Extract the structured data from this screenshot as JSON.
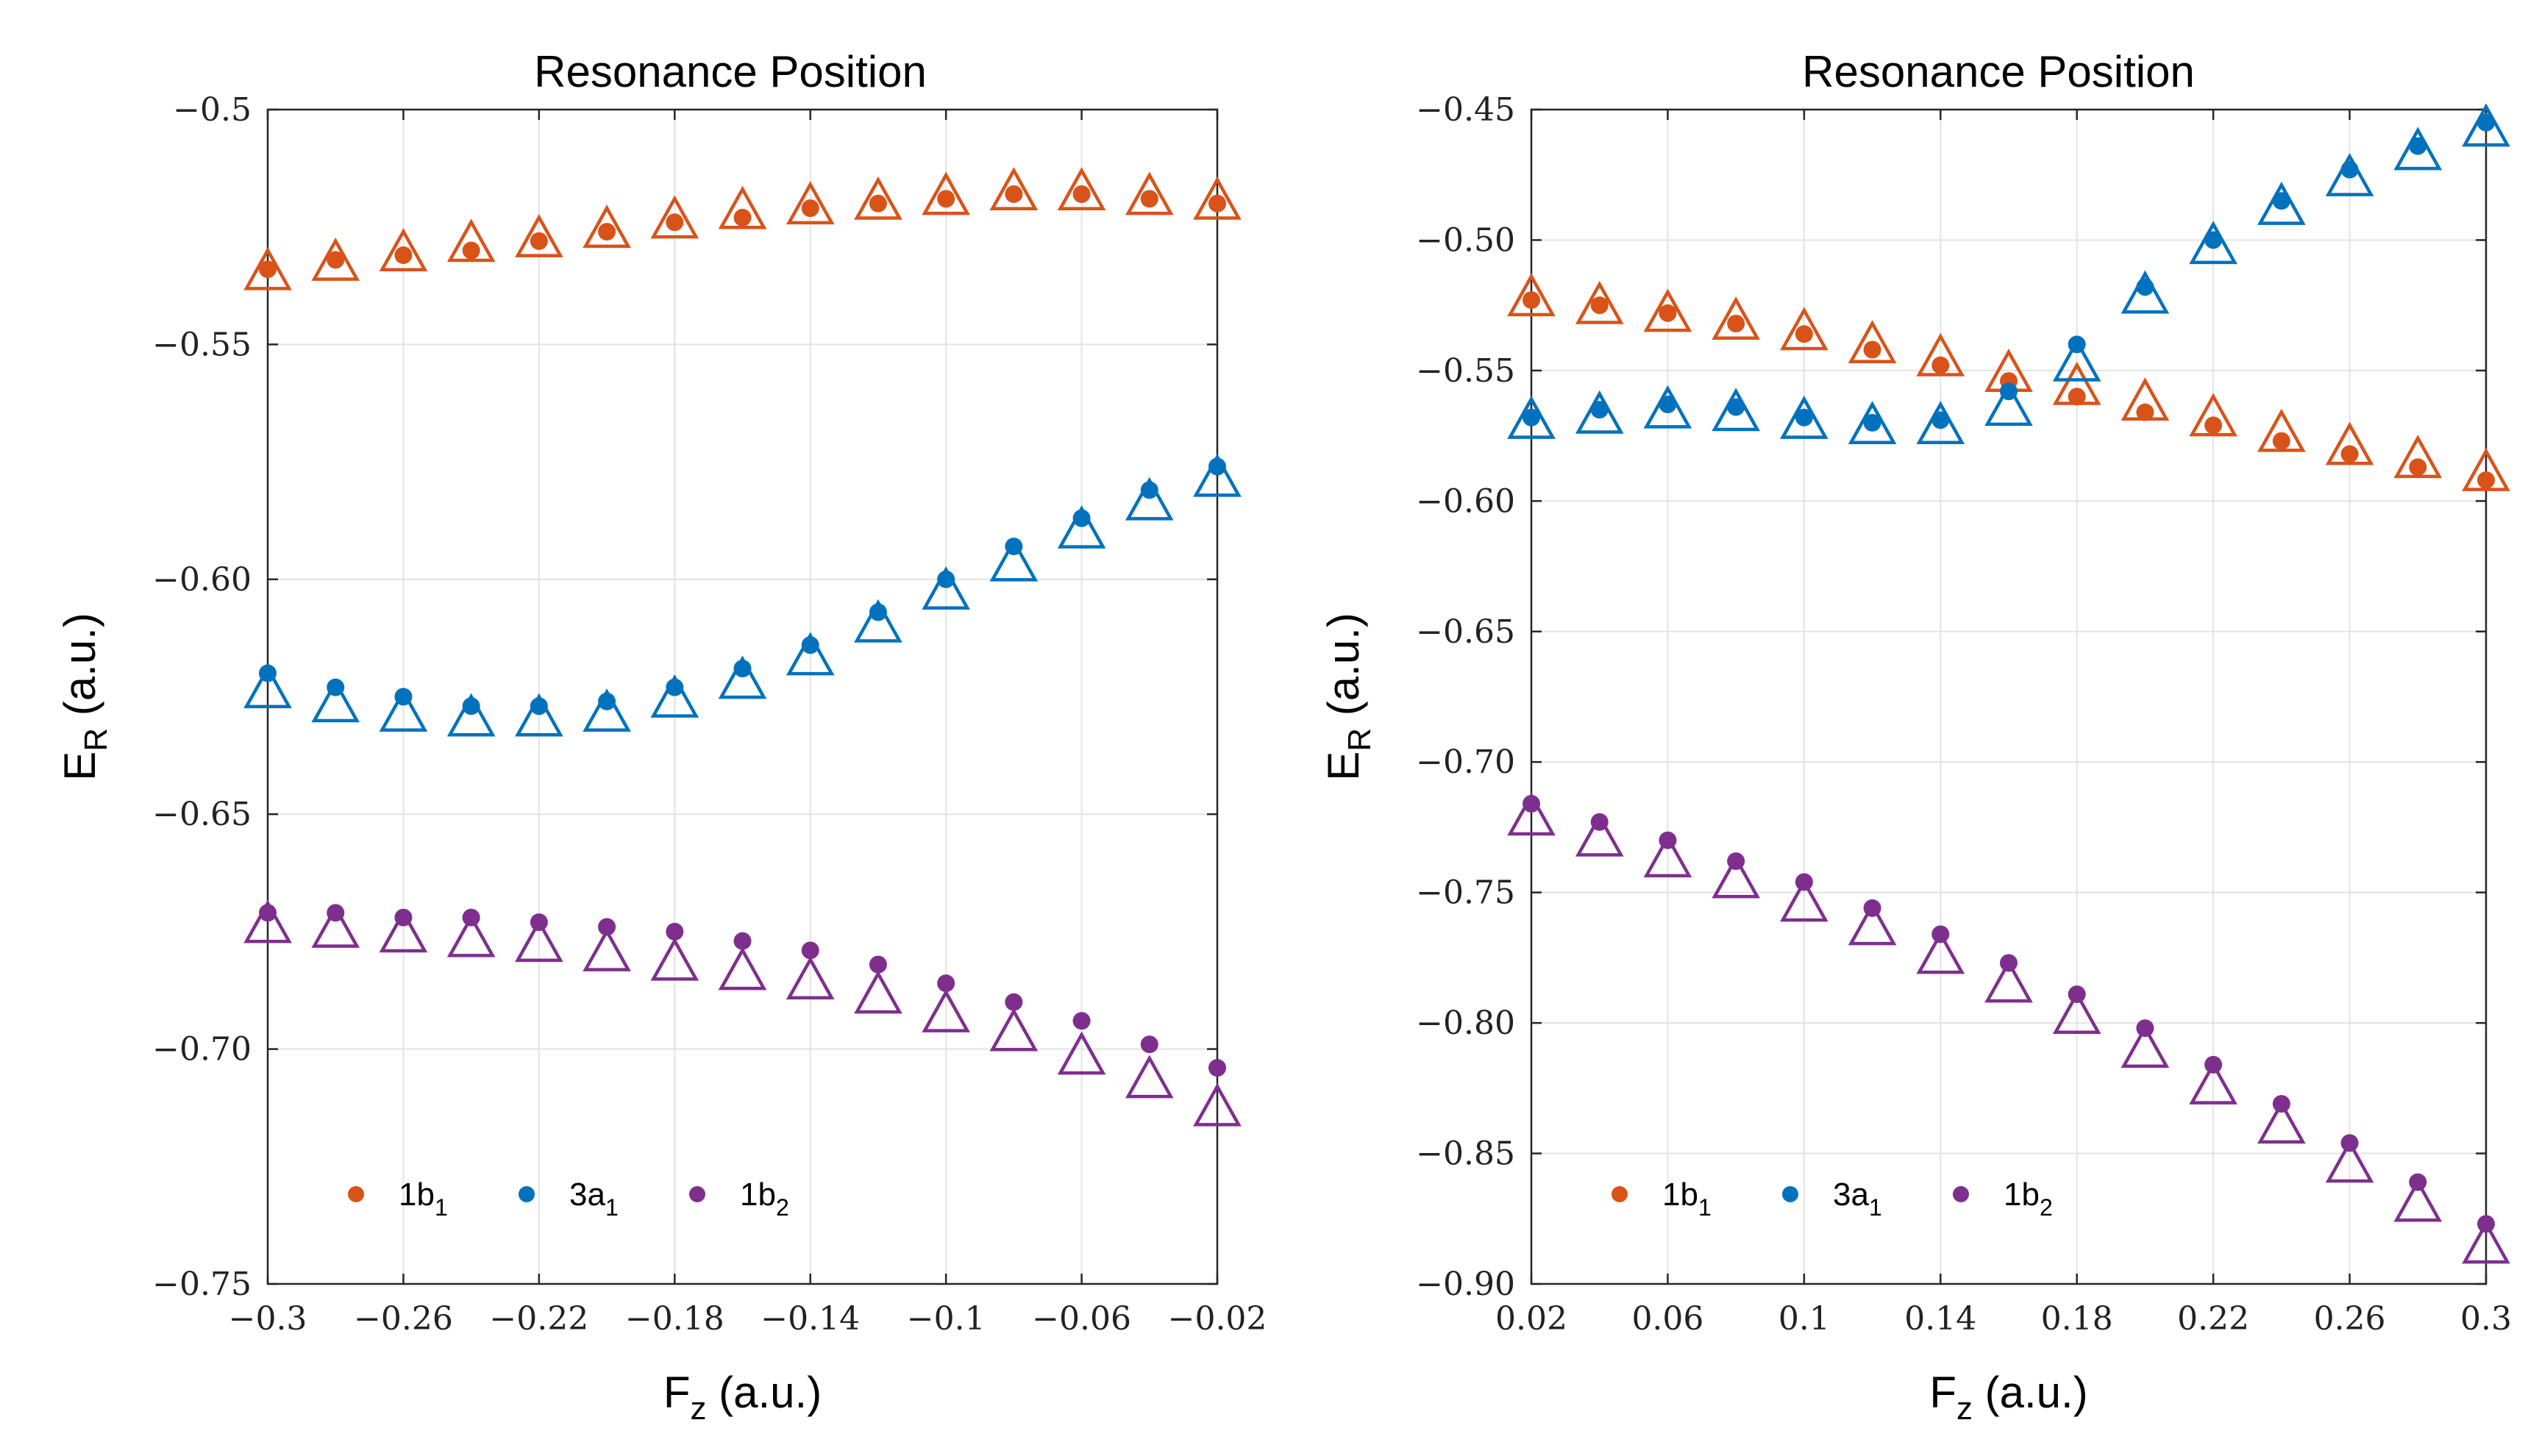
{
  "colors": {
    "1b1": "#D95319",
    "3a1": "#0072BD",
    "1b2": "#7E2F8E",
    "grid": "#e3e3e3",
    "axis": "#262626"
  },
  "chart_data": [
    {
      "type": "scatter",
      "title": "Resonance Position",
      "xlabel": {
        "main": "F",
        "sub": "z",
        "rest": " (a.u.)"
      },
      "ylabel": {
        "main": "E",
        "sub": "R",
        "rest": " (a.u.)"
      },
      "xlim": [
        -0.3,
        -0.02
      ],
      "ylim": [
        -0.75,
        -0.5
      ],
      "xticks": [
        -0.3,
        -0.26,
        -0.22,
        -0.18,
        -0.14,
        -0.1,
        -0.06,
        -0.02
      ],
      "xtick_labels": [
        "−0.3",
        "−0.26",
        "−0.22",
        "−0.18",
        "−0.14",
        "−0.1",
        "−0.06",
        "−0.02"
      ],
      "yticks": [
        -0.75,
        -0.7,
        -0.65,
        -0.6,
        -0.55,
        -0.5
      ],
      "ytick_labels": [
        "−0.75",
        "−0.70",
        "−0.65",
        "−0.60",
        "−0.55",
        "−0.5"
      ],
      "grid": true,
      "legend_position": "bottom-left",
      "x": [
        -0.3,
        -0.28,
        -0.26,
        -0.24,
        -0.22,
        -0.2,
        -0.18,
        -0.16,
        -0.14,
        -0.12,
        -0.1,
        -0.08,
        -0.06,
        -0.04,
        -0.02
      ],
      "series": [
        {
          "name": "1b",
          "sub": "1",
          "color_key": "1b1",
          "dots": [
            -0.534,
            -0.532,
            -0.531,
            -0.53,
            -0.528,
            -0.526,
            -0.524,
            -0.523,
            -0.521,
            -0.52,
            -0.519,
            -0.518,
            -0.518,
            -0.519,
            -0.52
          ],
          "triangles": [
            -0.535,
            -0.533,
            -0.531,
            -0.529,
            -0.528,
            -0.526,
            -0.524,
            -0.522,
            -0.521,
            -0.52,
            -0.519,
            -0.518,
            -0.518,
            -0.519,
            -0.52
          ]
        },
        {
          "name": "3a",
          "sub": "1",
          "color_key": "3a1",
          "dots": [
            -0.62,
            -0.623,
            -0.625,
            -0.627,
            -0.627,
            -0.626,
            -0.623,
            -0.619,
            -0.614,
            -0.607,
            -0.6,
            -0.593,
            -0.587,
            -0.581,
            -0.576
          ],
          "triangles": [
            -0.624,
            -0.627,
            -0.629,
            -0.63,
            -0.63,
            -0.629,
            -0.626,
            -0.622,
            -0.617,
            -0.61,
            -0.603,
            -0.597,
            -0.59,
            -0.584,
            -0.579
          ]
        },
        {
          "name": "1b",
          "sub": "2",
          "color_key": "1b2",
          "dots": [
            -0.671,
            -0.671,
            -0.672,
            -0.672,
            -0.673,
            -0.674,
            -0.675,
            -0.677,
            -0.679,
            -0.682,
            -0.686,
            -0.69,
            -0.694,
            -0.699,
            -0.704
          ],
          "triangles": [
            -0.674,
            -0.675,
            -0.676,
            -0.677,
            -0.678,
            -0.68,
            -0.682,
            -0.684,
            -0.686,
            -0.689,
            -0.693,
            -0.697,
            -0.702,
            -0.707,
            -0.713
          ]
        }
      ]
    },
    {
      "type": "scatter",
      "title": "Resonance Position",
      "xlabel": {
        "main": "F",
        "sub": "z",
        "rest": " (a.u.)"
      },
      "ylabel": {
        "main": "E",
        "sub": "R",
        "rest": " (a.u.)"
      },
      "xlim": [
        0.02,
        0.3
      ],
      "ylim": [
        -0.9,
        -0.45
      ],
      "xticks": [
        0.02,
        0.06,
        0.1,
        0.14,
        0.18,
        0.22,
        0.26,
        0.3
      ],
      "xtick_labels": [
        "0.02",
        "0.06",
        "0.1",
        "0.14",
        "0.18",
        "0.22",
        "0.26",
        "0.3"
      ],
      "yticks": [
        -0.9,
        -0.85,
        -0.8,
        -0.75,
        -0.7,
        -0.65,
        -0.6,
        -0.55,
        -0.5,
        -0.45
      ],
      "ytick_labels": [
        "−0.90",
        "−0.85",
        "−0.80",
        "−0.75",
        "−0.70",
        "−0.65",
        "−0.60",
        "−0.55",
        "−0.50",
        "−0.45"
      ],
      "grid": true,
      "legend_position": "bottom-left",
      "x": [
        0.02,
        0.04,
        0.06,
        0.08,
        0.1,
        0.12,
        0.14,
        0.16,
        0.18,
        0.2,
        0.22,
        0.24,
        0.26,
        0.28,
        0.3
      ],
      "series": [
        {
          "name": "1b",
          "sub": "1",
          "color_key": "1b1",
          "dots": [
            -0.523,
            -0.525,
            -0.528,
            -0.532,
            -0.536,
            -0.542,
            -0.548,
            -0.554,
            -0.56,
            -0.566,
            -0.571,
            -0.577,
            -0.582,
            -0.587,
            -0.592
          ],
          "triangles": [
            -0.523,
            -0.526,
            -0.529,
            -0.532,
            -0.536,
            -0.541,
            -0.546,
            -0.552,
            -0.557,
            -0.563,
            -0.569,
            -0.575,
            -0.58,
            -0.585,
            -0.59
          ]
        },
        {
          "name": "3a",
          "sub": "1",
          "color_key": "3a1",
          "dots": [
            -0.568,
            -0.565,
            -0.563,
            -0.564,
            -0.568,
            -0.57,
            -0.569,
            -0.558,
            -0.54,
            -0.518,
            -0.5,
            -0.485,
            -0.473,
            -0.464,
            -0.455
          ],
          "triangles": [
            -0.57,
            -0.568,
            -0.566,
            -0.567,
            -0.57,
            -0.572,
            -0.572,
            -0.565,
            -0.548,
            -0.522,
            -0.503,
            -0.488,
            -0.477,
            -0.467,
            -0.458
          ]
        },
        {
          "name": "1b",
          "sub": "2",
          "color_key": "1b2",
          "dots": [
            -0.716,
            -0.723,
            -0.73,
            -0.738,
            -0.746,
            -0.756,
            -0.766,
            -0.777,
            -0.789,
            -0.802,
            -0.816,
            -0.831,
            -0.846,
            -0.861,
            -0.877
          ],
          "triangles": [
            -0.722,
            -0.73,
            -0.738,
            -0.746,
            -0.755,
            -0.764,
            -0.775,
            -0.786,
            -0.798,
            -0.811,
            -0.825,
            -0.84,
            -0.855,
            -0.87,
            -0.886
          ]
        }
      ]
    }
  ]
}
